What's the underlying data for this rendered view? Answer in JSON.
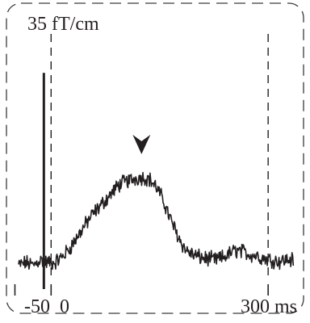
{
  "chart_data": {
    "type": "line",
    "title": "",
    "scale_bar_label": "35 fT/cm",
    "x_unit": "ms",
    "xlim": [
      -55,
      340
    ],
    "x_ticks": [
      {
        "value": -50,
        "label": "-50"
      },
      {
        "value": 0,
        "label": "0"
      },
      {
        "value": 300,
        "label": "300 ms"
      }
    ],
    "ylim": [
      -8,
      82
    ],
    "scale_bar": {
      "x": -10,
      "y_from": 0,
      "y_to": 70
    },
    "dashed_markers_x": [
      0,
      300
    ],
    "annotation": {
      "type": "arrowhead",
      "x": 125,
      "y": 40
    },
    "series": [
      {
        "values": [
          [
            -45,
            -1
          ],
          [
            -35,
            0
          ],
          [
            -25,
            -1
          ],
          [
            -15,
            1
          ],
          [
            -5,
            0
          ],
          [
            5,
            0
          ],
          [
            15,
            2
          ],
          [
            25,
            5
          ],
          [
            35,
            9
          ],
          [
            45,
            13
          ],
          [
            55,
            17
          ],
          [
            65,
            20
          ],
          [
            75,
            23
          ],
          [
            85,
            26
          ],
          [
            95,
            29
          ],
          [
            105,
            30
          ],
          [
            115,
            31
          ],
          [
            125,
            31.5
          ],
          [
            135,
            31
          ],
          [
            145,
            28
          ],
          [
            155,
            23
          ],
          [
            165,
            16
          ],
          [
            175,
            10
          ],
          [
            185,
            5
          ],
          [
            195,
            3
          ],
          [
            205,
            2
          ],
          [
            215,
            1.5
          ],
          [
            225,
            1
          ],
          [
            235,
            1.5
          ],
          [
            245,
            3
          ],
          [
            255,
            4.5
          ],
          [
            265,
            4
          ],
          [
            275,
            3
          ],
          [
            285,
            2.5
          ],
          [
            295,
            1.5
          ],
          [
            305,
            1
          ],
          [
            315,
            0.5
          ],
          [
            325,
            1
          ],
          [
            335,
            1
          ]
        ]
      }
    ],
    "colors": {
      "trace": "#231f20",
      "frame": "#3a3a3a"
    }
  }
}
